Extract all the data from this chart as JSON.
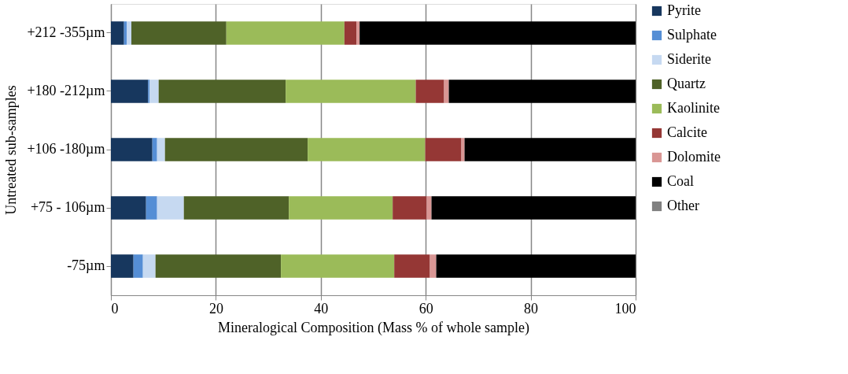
{
  "chart_data": {
    "type": "bar",
    "orientation": "horizontal",
    "stacked": true,
    "xlabel": "Mineralogical Composition (Mass % of whole sample)",
    "ylabel": "Untreated sub-samples",
    "categories": [
      "+212 -355µm",
      "+180 -212µm",
      "+106 -180µm",
      "+75 - 106µm",
      "-75µm"
    ],
    "series": [
      {
        "name": "Pyrite",
        "color": "#17375e",
        "values": [
          2.5,
          7.1,
          7.9,
          6.7,
          4.3
        ]
      },
      {
        "name": "Sulphate",
        "color": "#558ed5",
        "values": [
          0.5,
          0.3,
          0.9,
          2.1,
          1.8
        ]
      },
      {
        "name": "Siderite",
        "color": "#c6d9f1",
        "values": [
          0.9,
          1.7,
          1.5,
          5.1,
          2.4
        ]
      },
      {
        "name": "Quartz",
        "color": "#4f6228",
        "values": [
          18.1,
          24.2,
          27.2,
          20.0,
          23.9
        ]
      },
      {
        "name": "Kaolinite",
        "color": "#9bbb59",
        "values": [
          22.5,
          24.8,
          22.4,
          19.8,
          21.6
        ]
      },
      {
        "name": "Calcite",
        "color": "#953735",
        "values": [
          2.3,
          5.4,
          6.9,
          6.5,
          6.8
        ]
      },
      {
        "name": "Dolomite",
        "color": "#d99694",
        "values": [
          0.6,
          0.9,
          0.6,
          0.9,
          1.2
        ]
      },
      {
        "name": "Coal",
        "color": "#000000",
        "values": [
          52.6,
          35.6,
          32.6,
          38.9,
          38.0
        ]
      },
      {
        "name": "Other",
        "color": "#808080",
        "values": [
          0,
          0,
          0,
          0,
          0
        ]
      }
    ],
    "xlim": [
      0,
      100
    ],
    "xticks": [
      0,
      20,
      40,
      60,
      80,
      100
    ],
    "grid": "x",
    "legend": "right"
  }
}
